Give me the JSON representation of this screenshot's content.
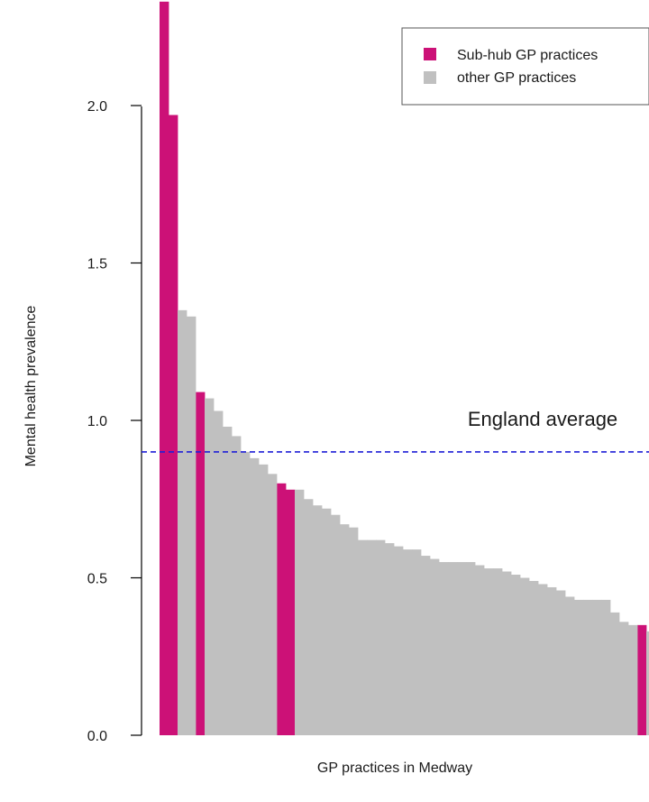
{
  "chart_data": {
    "type": "bar",
    "title": "",
    "xlabel": "GP practices in Medway",
    "ylabel": "Mental health prevalence",
    "ylim": [
      0,
      2.35
    ],
    "yticks": [
      "0.0",
      "0.5",
      "1.0",
      "1.5",
      "2.0"
    ],
    "ytick_values": [
      0,
      0.5,
      1.0,
      1.5,
      2.0
    ],
    "grid": false,
    "legend_position": "top-right",
    "legend": [
      {
        "label": "Sub-hub GP practices",
        "color": "#cc1177"
      },
      {
        "label": "other GP practices",
        "color": "#c0c0c0"
      }
    ],
    "reference_line": {
      "label": "England average",
      "value": 0.9,
      "color": "#1f1fd6",
      "style": "dashed"
    },
    "series": [
      {
        "name": "Sub-hub GP practices",
        "color": "#cc1177",
        "values": [
          2.33,
          1.97,
          null,
          null,
          1.09,
          null,
          null,
          null,
          null,
          null,
          null,
          null,
          null,
          0.8,
          0.78,
          null,
          null,
          null,
          null,
          null,
          null,
          null,
          null,
          null,
          null,
          null,
          null,
          null,
          null,
          null,
          null,
          null,
          null,
          null,
          null,
          null,
          null,
          null,
          null,
          null,
          null,
          null,
          null,
          null,
          null,
          null,
          null,
          null,
          null,
          null,
          null,
          null,
          null,
          0.35,
          null
        ]
      },
      {
        "name": "other GP practices",
        "color": "#c0c0c0",
        "values": [
          null,
          null,
          1.35,
          1.33,
          null,
          1.07,
          1.03,
          0.98,
          0.95,
          0.9,
          0.88,
          0.86,
          0.83,
          null,
          null,
          0.78,
          0.75,
          0.73,
          0.72,
          0.7,
          0.67,
          0.66,
          0.62,
          0.62,
          0.62,
          0.61,
          0.6,
          0.59,
          0.59,
          0.57,
          0.56,
          0.55,
          0.55,
          0.55,
          0.55,
          0.54,
          0.53,
          0.53,
          0.52,
          0.51,
          0.5,
          0.49,
          0.48,
          0.47,
          0.46,
          0.44,
          0.43,
          0.43,
          0.43,
          0.43,
          0.39,
          0.36,
          0.35,
          null,
          0.33
        ]
      }
    ]
  }
}
